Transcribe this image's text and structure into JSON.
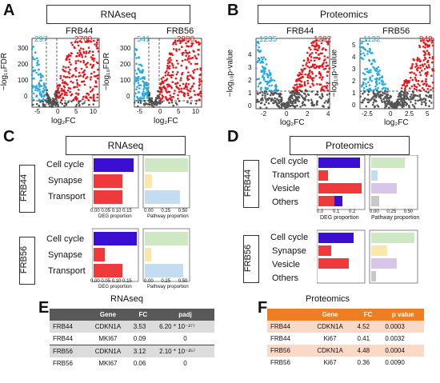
{
  "panelA": {
    "letter": "A",
    "banner": "RNAseq",
    "plots": [
      {
        "title": "FRB44",
        "left_count": "297",
        "right_count": "2700"
      },
      {
        "title": "FRB56",
        "left_count": "541",
        "right_count": "2880"
      }
    ],
    "yticks": [
      "0",
      "100",
      "200",
      "300"
    ],
    "xticks": [
      "-5",
      "0",
      "5",
      "10"
    ],
    "ylabel": "−log₁₀FDR",
    "xlabel": "log₂FC"
  },
  "panelB": {
    "letter": "B",
    "banner": "Proteomics",
    "plots": [
      {
        "title": "FRB44",
        "left_count": "1235",
        "right_count": "1292",
        "xticks": [
          "-2",
          "0",
          "2",
          "4"
        ],
        "yticks": [
          "0",
          "1",
          "2",
          "3",
          "4"
        ]
      },
      {
        "title": "FRB56",
        "left_count": "1132",
        "right_count": "949",
        "xticks": [
          "-2.5",
          "0",
          "2.5",
          "5"
        ],
        "yticks": [
          "0",
          "1",
          "2",
          "3",
          "4",
          "5"
        ]
      }
    ],
    "ylabel": "−log₁₀p-value",
    "xlabel": "log₂FC"
  },
  "panelC": {
    "letter": "C",
    "banner": "RNAseq",
    "groups": [
      {
        "label": "FRB44",
        "rows": [
          "Cell cycle",
          "Synapse",
          "Transport"
        ],
        "deg": [
          0.12,
          0.09,
          0.09
        ],
        "pathway": [
          0.5,
          0.08,
          0.4
        ],
        "deg_ticks": [
          "0.00",
          "0.05",
          "0.10",
          "0.15"
        ],
        "deg_xlabel": "DEG proportion",
        "path_ticks": [
          "0.00",
          "0.25",
          "0.50"
        ],
        "path_xlabel": "Pathway proportion"
      },
      {
        "label": "FRB56",
        "rows": [
          "Cell cycle",
          "Synapse",
          "Transport"
        ],
        "deg": [
          0.16,
          0.04,
          0.1
        ],
        "pathway": [
          0.5,
          0.07,
          0.44
        ],
        "deg_ticks": [
          "0.00",
          "0.05",
          "0.10",
          "0.15"
        ],
        "deg_xlabel": "DEG proportion",
        "path_ticks": [
          "0.00",
          "0.25",
          "0.50"
        ],
        "path_xlabel": "Pathway proportion"
      }
    ]
  },
  "panelD": {
    "letter": "D",
    "banner": "Proteomics",
    "groups": [
      {
        "label": "FRB44",
        "rows": [
          "Cell cycle",
          "Transport",
          "Vesicle",
          "Others"
        ],
        "deg_ticks": [
          "0.0",
          "0.1",
          "0.2"
        ],
        "deg_xlabel": "DEG proportion",
        "path_ticks": [
          "0.00",
          "0.25",
          "0.50"
        ],
        "path_xlabel": "Pathway proportion"
      },
      {
        "label": "FRB56",
        "rows": [
          "Cell cycle",
          "Synapse",
          "Vesicle",
          "Others"
        ],
        "deg_ticks": [],
        "deg_xlabel": "",
        "path_ticks": [],
        "path_xlabel": ""
      }
    ]
  },
  "panelE": {
    "letter": "E",
    "title": "RNAseq",
    "header": [
      "",
      "Gene",
      "FC",
      "padj"
    ],
    "rows": [
      [
        "FRB44",
        "CDKN1A",
        "3.53",
        "6.20 * 10⁻²⁷⁷"
      ],
      [
        "FRB44",
        "MKI67",
        "0.09",
        "0"
      ],
      [
        "FRB56",
        "CDKN1A",
        "3.12",
        "2.10 * 10⁻²⁵⁷"
      ],
      [
        "FRB56",
        "MKI67",
        "0.06",
        "0"
      ]
    ]
  },
  "panelF": {
    "letter": "F",
    "title": "Proteomics",
    "header": [
      "",
      "Gene",
      "FC",
      "p value"
    ],
    "rows": [
      [
        "FRB44",
        "CDKN1A",
        "4.52",
        "0.0003"
      ],
      [
        "FRB44",
        "Ki67",
        "0.41",
        "0.0032"
      ],
      [
        "FRB56",
        "CDKN1A",
        "4.48",
        "0.0004"
      ],
      [
        "FRB56",
        "Ki67",
        "0.36",
        "0.0090"
      ]
    ]
  },
  "colors": {
    "up": "#e8151b",
    "down": "#27a9e1",
    "ns": "#555555",
    "cellcycle_deg": "#3a0fd1",
    "other_deg": "#ee3a3a",
    "path_green": "#cfe8c4",
    "path_yellow": "#fbe8a8",
    "path_blue": "#c4dcf0",
    "path_purple": "#d8c5ea",
    "path_gray": "#c8c8c8",
    "tableE_header": "#595959",
    "tableE_row": "#dcdcdc",
    "tableF_header": "#ef7d22",
    "tableF_row": "#fbd9c6"
  }
}
